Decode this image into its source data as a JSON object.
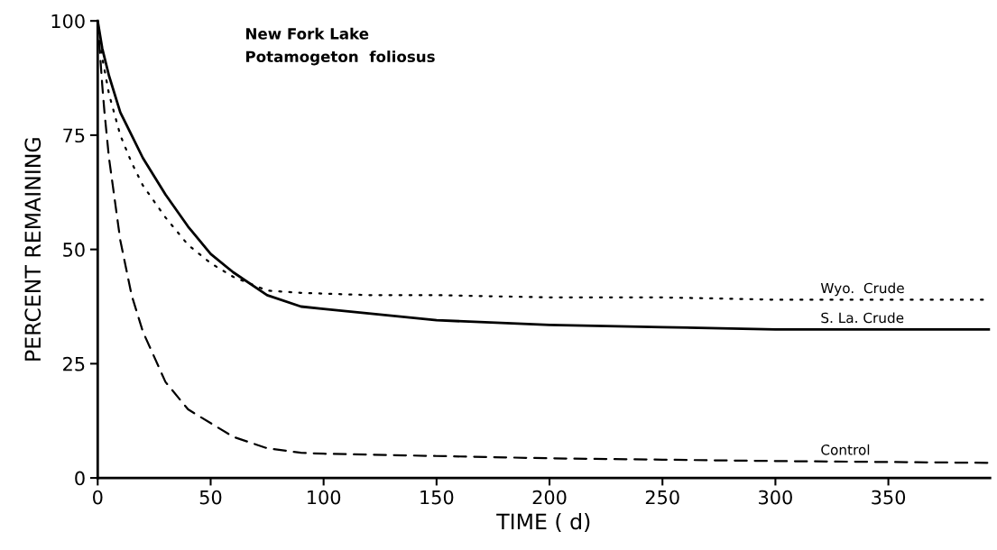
{
  "chart_data": {
    "type": "line",
    "title": "New Fork Lake",
    "subtitle": "Potamogeton  foliosus",
    "xlabel": "TIME ( d)",
    "ylabel": "PERCENT REMAINING",
    "xlim": [
      0,
      395
    ],
    "ylim": [
      0,
      100
    ],
    "xticks": [
      0,
      50,
      100,
      150,
      200,
      250,
      300,
      350
    ],
    "yticks": [
      0,
      25,
      50,
      75,
      100
    ],
    "grid": false,
    "legend": false,
    "series": [
      {
        "name": "Wyo.  Crude",
        "color": "#000000",
        "line_style": "dotted",
        "x": [
          0,
          2,
          5,
          10,
          15,
          20,
          30,
          40,
          50,
          60,
          75,
          90,
          120,
          150,
          200,
          250,
          300,
          395
        ],
        "values": [
          100,
          92,
          84,
          75,
          69,
          64,
          57,
          51,
          47,
          44,
          41,
          40.5,
          40,
          40,
          39.5,
          39.5,
          39,
          39
        ]
      },
      {
        "name": "S. La. Crude",
        "color": "#000000",
        "line_style": "solid",
        "x": [
          0,
          2,
          5,
          10,
          15,
          20,
          30,
          40,
          50,
          60,
          75,
          90,
          100,
          150,
          200,
          250,
          300,
          395
        ],
        "values": [
          100,
          94,
          88,
          80,
          75,
          70,
          62,
          55,
          49,
          45,
          40,
          37.5,
          37,
          34.5,
          33.5,
          33,
          32.5,
          32.5
        ]
      },
      {
        "name": "Control",
        "color": "#000000",
        "line_style": "dashed",
        "x": [
          0,
          2,
          3,
          5,
          10,
          15,
          20,
          30,
          40,
          50,
          60,
          75,
          90,
          100,
          150,
          200,
          250,
          300,
          395
        ],
        "values": [
          100,
          86,
          80,
          70,
          52,
          40,
          32,
          21,
          15,
          12,
          9,
          6.5,
          5.5,
          5.3,
          4.8,
          4.3,
          4,
          3.7,
          3.3
        ]
      }
    ]
  }
}
